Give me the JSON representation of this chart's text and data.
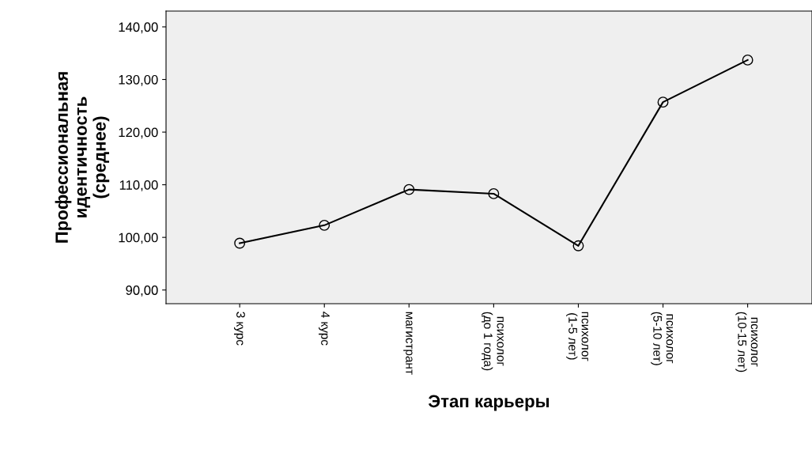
{
  "chart_data": {
    "type": "line",
    "xlabel": "Этап карьеры",
    "ylabel": "Профессиональная\nидентичность\n(среднее)",
    "categories": [
      "3 курс",
      "4 курс",
      "магистрант",
      "психолог\n(до 1 года)",
      "психолог\n(1-5 лет)",
      "психолог\n(5-10 лет)",
      "психолог\n(10-15 лет)"
    ],
    "series": [
      {
        "color": "#000000",
        "values": [
          98.9,
          102.3,
          109.1,
          108.3,
          98.4,
          125.7,
          133.7
        ]
      }
    ],
    "ylim": [
      87.4,
      143
    ],
    "yticks": [
      {
        "value": 90,
        "label": "90,00"
      },
      {
        "value": 100,
        "label": "100,00"
      },
      {
        "value": 110,
        "label": "110,00"
      },
      {
        "value": 120,
        "label": "120,00"
      },
      {
        "value": 130,
        "label": "130,00"
      },
      {
        "value": 140,
        "label": "140,00"
      }
    ],
    "marker": "circle",
    "line_style": "solid",
    "grid": false,
    "legend": false
  }
}
